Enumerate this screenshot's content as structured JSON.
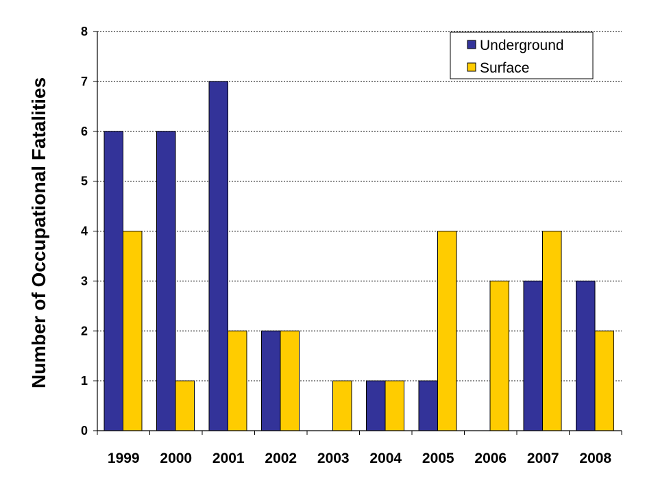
{
  "chart_data": {
    "type": "bar",
    "title": "",
    "xlabel": "",
    "ylabel": "Number of Occupational Fatalities",
    "ylim": [
      0,
      8
    ],
    "yticks": [
      "0",
      "1",
      "2",
      "3",
      "4",
      "5",
      "6",
      "7",
      "8"
    ],
    "grid": true,
    "legend_position": "top-right",
    "categories": [
      "1999",
      "2000",
      "2001",
      "2002",
      "2003",
      "2004",
      "2005",
      "2006",
      "2007",
      "2008"
    ],
    "series": [
      {
        "name": "Underground",
        "color": "#333399",
        "values": [
          6,
          6,
          7,
          2,
          0,
          1,
          1,
          0,
          3,
          3
        ]
      },
      {
        "name": "Surface",
        "color": "#FFCC00",
        "values": [
          4,
          1,
          2,
          2,
          1,
          1,
          4,
          3,
          4,
          2
        ]
      }
    ]
  }
}
